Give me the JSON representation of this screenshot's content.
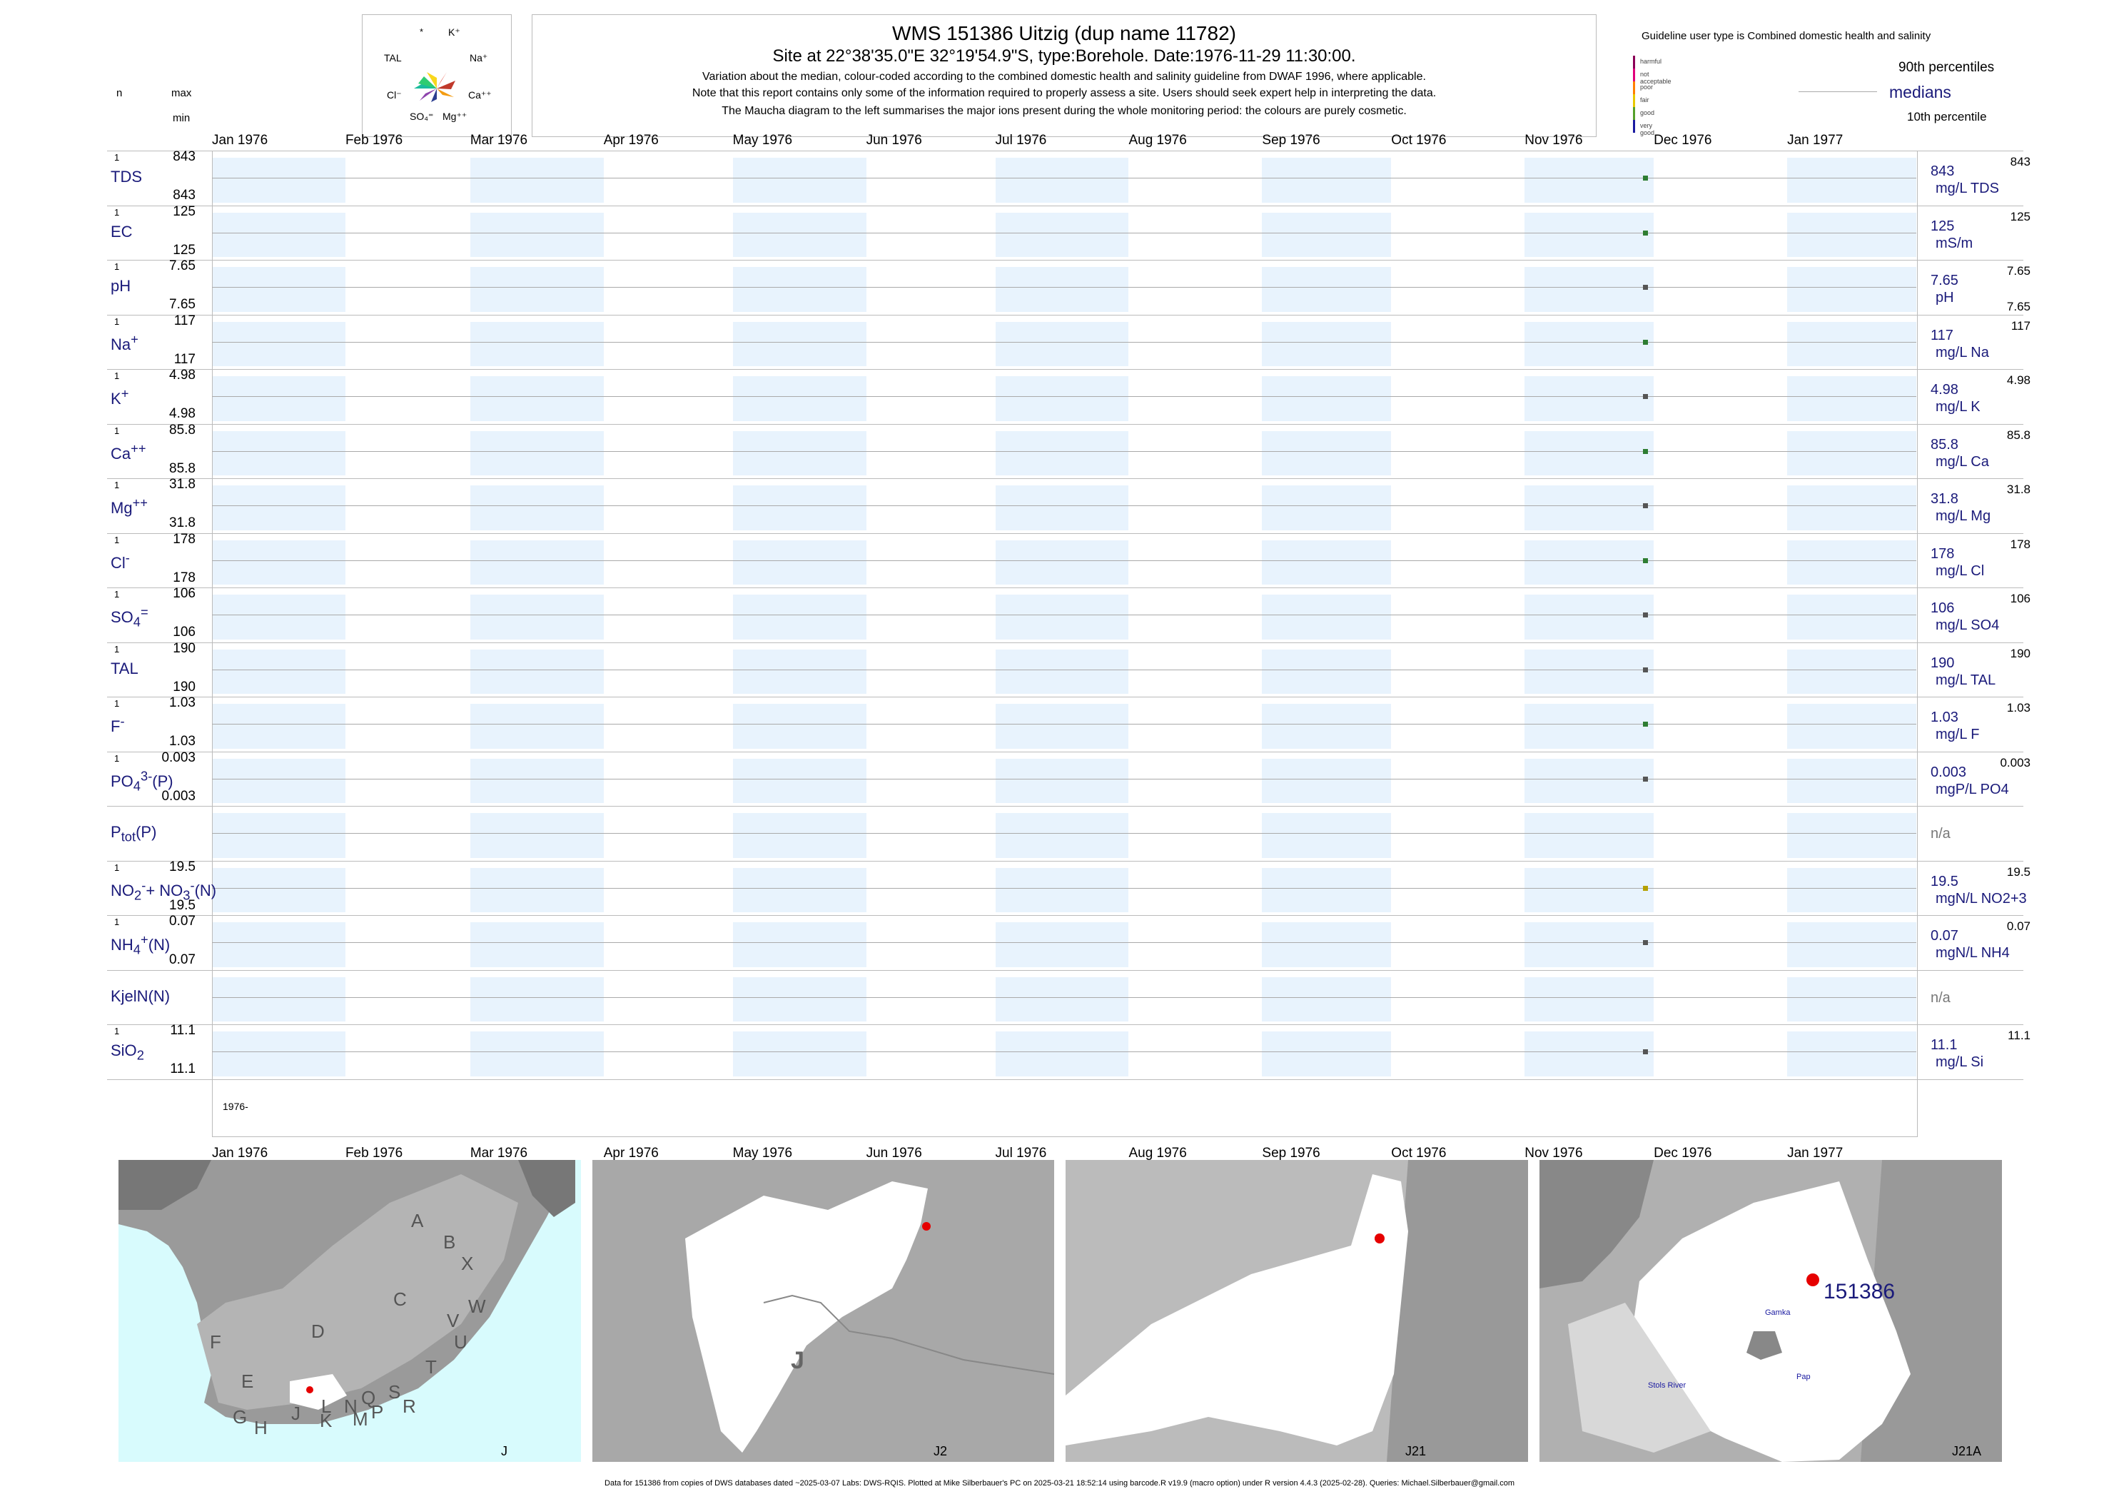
{
  "header": {
    "title": "WMS 151386  Uitzig (dup name 11782)",
    "subtitle": "Site at 22°38'35.0\"E 32°19'54.9\"S, type:Borehole. Date:1976-11-29 11:30:00.",
    "note1": "Variation about the median,  colour-coded according to the combined domestic health and salinity guideline from DWAF 1996, where applicable.",
    "note2": "Note that this report contains only some of the information required to properly assess a site. Users should seek expert help in interpreting the data.",
    "note3": "The Maucha diagram to the left summarises the major ions present during the whole monitoring period: the colours are purely cosmetic."
  },
  "maucha": {
    "labels": {
      "star": "*",
      "k": "K⁺",
      "tal": "TAL",
      "na": "Na⁺",
      "cl": "Cl⁻",
      "ca": "Ca⁺⁺",
      "so4": "SO₄⁼",
      "mg": "Mg⁺⁺"
    }
  },
  "left_legend": {
    "n": "n",
    "max": "max",
    "min": "min"
  },
  "guideline": {
    "title": "Guideline user type is Combined domestic health and salinity",
    "classes": [
      "harmful",
      "not acceptable",
      "poor",
      "fair",
      "good",
      "very good"
    ],
    "colors": [
      "#8b0057",
      "#e0007a",
      "#ff7f00",
      "#e8c800",
      "#55a02a",
      "#1a1aa0"
    ]
  },
  "percentile_legend": {
    "p90": "90th percentiles",
    "median": "medians",
    "p10": "10th percentile"
  },
  "months": [
    "Jan 1976",
    "Feb 1976",
    "Mar 1976",
    "Apr 1976",
    "May 1976",
    "Jun 1976",
    "Jul 1976",
    "Aug 1976",
    "Sep 1976",
    "Oct 1976",
    "Nov 1976",
    "Dec 1976",
    "Jan 1977"
  ],
  "year_label": "1976-",
  "chart_data": {
    "type": "scatter",
    "x_range": [
      "1976-01-01",
      "1977-01-31"
    ],
    "sample_date": "1976-11-29",
    "panels": [
      {
        "name": "TDS",
        "n": "1",
        "max": "843",
        "min": "843",
        "median": "843",
        "p90": "843",
        "unit": "mg/L TDS",
        "color": "#2e7d32"
      },
      {
        "name": "EC",
        "n": "1",
        "max": "125",
        "min": "125",
        "median": "125",
        "p90": "125",
        "unit": "mS/m",
        "color": "#2e7d32"
      },
      {
        "name": "pH",
        "n": "1",
        "max": "7.65",
        "min": "7.65",
        "median": "7.65",
        "p90": "7.65",
        "p10": "7.65",
        "unit": "pH",
        "color": "#555555"
      },
      {
        "name": "Na+",
        "n": "1",
        "max": "117",
        "min": "117",
        "median": "117",
        "p90": "117",
        "unit": "mg/L Na",
        "color": "#2e7d32"
      },
      {
        "name": "K+",
        "n": "1",
        "max": "4.98",
        "min": "4.98",
        "median": "4.98",
        "p90": "4.98",
        "unit": "mg/L K",
        "color": "#555555"
      },
      {
        "name": "Ca++",
        "n": "1",
        "max": "85.8",
        "min": "85.8",
        "median": "85.8",
        "p90": "85.8",
        "unit": "mg/L Ca",
        "color": "#2e7d32"
      },
      {
        "name": "Mg++",
        "n": "1",
        "max": "31.8",
        "min": "31.8",
        "median": "31.8",
        "p90": "31.8",
        "unit": "mg/L Mg",
        "color": "#555555"
      },
      {
        "name": "Cl-",
        "n": "1",
        "max": "178",
        "min": "178",
        "median": "178",
        "p90": "178",
        "unit": "mg/L Cl",
        "color": "#2e7d32"
      },
      {
        "name": "SO4=",
        "n": "1",
        "max": "106",
        "min": "106",
        "median": "106",
        "p90": "106",
        "unit": "mg/L SO4",
        "color": "#555555"
      },
      {
        "name": "TAL",
        "n": "1",
        "max": "190",
        "min": "190",
        "median": "190",
        "p90": "190",
        "unit": "mg/L TAL",
        "color": "#555555"
      },
      {
        "name": "F-",
        "n": "1",
        "max": "1.03",
        "min": "1.03",
        "median": "1.03",
        "p90": "1.03",
        "unit": "mg/L F",
        "color": "#2e7d32"
      },
      {
        "name": "PO4 3-(P)",
        "n": "1",
        "max": "0.003",
        "min": "0.003",
        "median": "0.003",
        "p90": "0.003",
        "unit": "mgP/L PO4",
        "color": "#555555"
      },
      {
        "name": "Ptot(P)",
        "n": "",
        "max": "",
        "min": "",
        "median": "n/a",
        "p90": "",
        "unit": "",
        "color": ""
      },
      {
        "name": "NO2+NO3(N)",
        "n": "1",
        "max": "19.5",
        "min": "19.5",
        "median": "19.5",
        "p90": "19.5",
        "unit": "mgN/L NO2+3",
        "color": "#b5a000"
      },
      {
        "name": "NH4+(N)",
        "n": "1",
        "max": "0.07",
        "min": "0.07",
        "median": "0.07",
        "p90": "0.07",
        "unit": "mgN/L NH4",
        "color": "#555555"
      },
      {
        "name": "KjelN(N)",
        "n": "",
        "max": "",
        "min": "",
        "median": "n/a",
        "p90": "",
        "unit": "",
        "color": ""
      },
      {
        "name": "SiO2",
        "n": "1",
        "max": "11.1",
        "min": "11.1",
        "median": "11.1",
        "p90": "11.1",
        "unit": "mg/L Si",
        "color": "#555555"
      }
    ]
  },
  "maps": {
    "m1": {
      "label": "J",
      "regions": [
        "A",
        "B",
        "X",
        "W",
        "C",
        "V",
        "U",
        "D",
        "T",
        "F",
        "E",
        "S",
        "R",
        "Q",
        "N",
        "L",
        "J",
        "M",
        "P",
        "K",
        "H",
        "G"
      ]
    },
    "m2": {
      "label": "J2",
      "big": "J"
    },
    "m3": {
      "label": "J21"
    },
    "m4": {
      "label": "J21A",
      "site": "151386",
      "places": [
        "Gamka",
        "Pap",
        "Stols River"
      ]
    }
  },
  "footer": "Data for 151386 from copies of DWS databases dated ~2025-03-07 Labs: DWS-RQIS. Plotted at Mike Silberbauer's PC on 2025-03-21 18:52:14 using barcode.R v19.9 (macro option) under R version 4.4.3 (2025-02-28). Queries: Michael.Silberbauer@gmail.com"
}
